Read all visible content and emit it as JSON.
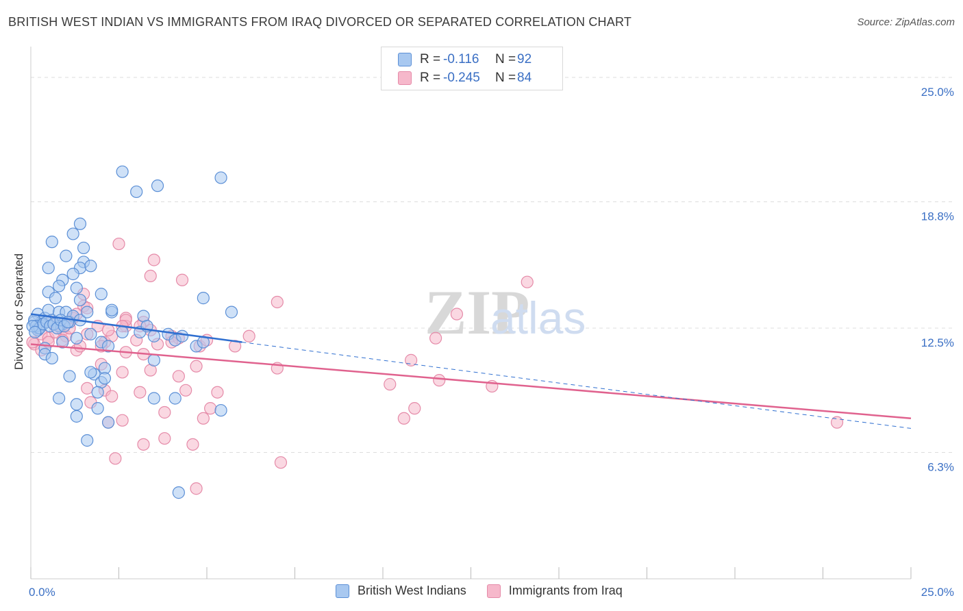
{
  "title": "BRITISH WEST INDIAN VS IMMIGRANTS FROM IRAQ DIVORCED OR SEPARATED CORRELATION CHART",
  "source": "Source: ZipAtlas.com",
  "watermark": {
    "zip": "ZIP",
    "atlas": "atlas"
  },
  "colors": {
    "blue_fill": "#a8c8f0",
    "blue_stroke": "#5b8fd6",
    "blue_line": "#2f6fd0",
    "pink_fill": "#f6b8cb",
    "pink_stroke": "#e58aa8",
    "pink_line": "#e0628e",
    "axis_text": "#3a6fc4",
    "grid": "#dddddd"
  },
  "legend_top": [
    {
      "r_label": "R =",
      "r_value": "-0.116",
      "n_label": "N =",
      "n_value": "92",
      "color": "blue"
    },
    {
      "r_label": "R =",
      "r_value": "-0.245",
      "n_label": "N =",
      "n_value": "84",
      "color": "pink"
    }
  ],
  "legend_bottom": [
    "British West Indians",
    "Immigrants from Iraq"
  ],
  "chart_data": {
    "type": "scatter",
    "title": "BRITISH WEST INDIAN VS IMMIGRANTS FROM IRAQ DIVORCED OR SEPARATED CORRELATION CHART",
    "xlabel": "",
    "ylabel": "Divorced or Separated",
    "xlim": [
      0,
      25
    ],
    "ylim": [
      0,
      26.3
    ],
    "x_tick_labels": [
      "0.0%",
      "25.0%"
    ],
    "y_ticks": [
      6.3,
      12.5,
      18.8,
      25.0
    ],
    "y_tick_labels": [
      "6.3%",
      "12.5%",
      "18.8%",
      "25.0%"
    ],
    "grid": "horizontal dashed",
    "legend": "bottom",
    "series": [
      {
        "name": "British West Indians",
        "color": "blue",
        "trend": {
          "x0": 0.0,
          "y0": 13.2,
          "x1": 6.0,
          "y1": 11.8,
          "dashed_to_x": 25.0,
          "dashed_to_y": 7.5
        },
        "points": [
          [
            2.6,
            20.3
          ],
          [
            3.0,
            19.3
          ],
          [
            5.4,
            20.0
          ],
          [
            3.6,
            19.6
          ],
          [
            1.4,
            17.7
          ],
          [
            1.2,
            17.2
          ],
          [
            0.6,
            16.8
          ],
          [
            1.0,
            16.1
          ],
          [
            1.5,
            16.5
          ],
          [
            0.5,
            15.5
          ],
          [
            1.5,
            15.8
          ],
          [
            1.4,
            15.5
          ],
          [
            1.7,
            15.6
          ],
          [
            1.2,
            15.2
          ],
          [
            0.9,
            14.9
          ],
          [
            0.8,
            14.6
          ],
          [
            1.3,
            14.5
          ],
          [
            0.5,
            14.3
          ],
          [
            0.7,
            14.0
          ],
          [
            2.0,
            14.2
          ],
          [
            1.4,
            13.9
          ],
          [
            4.9,
            14.0
          ],
          [
            0.2,
            13.2
          ],
          [
            0.3,
            12.8
          ],
          [
            0.4,
            13.0
          ],
          [
            0.1,
            12.8
          ],
          [
            0.2,
            12.5
          ],
          [
            0.3,
            12.6
          ],
          [
            0.5,
            13.4
          ],
          [
            0.6,
            12.9
          ],
          [
            0.8,
            13.3
          ],
          [
            0.9,
            12.7
          ],
          [
            1.0,
            13.3
          ],
          [
            1.1,
            12.8
          ],
          [
            1.2,
            13.1
          ],
          [
            1.4,
            12.9
          ],
          [
            1.6,
            13.3
          ],
          [
            1.7,
            12.2
          ],
          [
            2.3,
            13.3
          ],
          [
            2.3,
            13.4
          ],
          [
            2.6,
            12.3
          ],
          [
            3.1,
            12.3
          ],
          [
            3.2,
            13.1
          ],
          [
            3.3,
            12.6
          ],
          [
            3.5,
            12.1
          ],
          [
            3.9,
            12.2
          ],
          [
            4.1,
            11.9
          ],
          [
            4.3,
            12.1
          ],
          [
            4.7,
            11.6
          ],
          [
            4.9,
            11.8
          ],
          [
            5.7,
            13.3
          ],
          [
            0.2,
            12.4
          ],
          [
            0.3,
            12.7
          ],
          [
            0.1,
            12.9
          ],
          [
            0.4,
            11.5
          ],
          [
            0.4,
            11.2
          ],
          [
            0.6,
            11.0
          ],
          [
            0.8,
            12.6
          ],
          [
            0.9,
            11.8
          ],
          [
            1.3,
            12.0
          ],
          [
            2.0,
            11.8
          ],
          [
            2.2,
            11.6
          ],
          [
            2.1,
            10.5
          ],
          [
            1.8,
            10.2
          ],
          [
            1.7,
            10.3
          ],
          [
            2.0,
            9.8
          ],
          [
            2.1,
            10.0
          ],
          [
            1.9,
            9.3
          ],
          [
            1.1,
            10.1
          ],
          [
            3.5,
            10.9
          ],
          [
            0.8,
            9.0
          ],
          [
            1.3,
            8.7
          ],
          [
            1.9,
            8.5
          ],
          [
            3.5,
            9.0
          ],
          [
            4.1,
            9.0
          ],
          [
            5.4,
            8.4
          ],
          [
            1.3,
            8.1
          ],
          [
            2.2,
            7.8
          ],
          [
            1.6,
            6.9
          ],
          [
            4.2,
            4.3
          ],
          [
            0.15,
            12.6
          ],
          [
            0.25,
            12.5
          ],
          [
            0.35,
            12.7
          ],
          [
            0.45,
            12.8
          ],
          [
            0.55,
            12.6
          ],
          [
            0.65,
            12.7
          ],
          [
            0.75,
            12.5
          ],
          [
            0.85,
            12.9
          ],
          [
            0.95,
            12.6
          ],
          [
            1.05,
            12.8
          ],
          [
            0.05,
            12.6
          ],
          [
            0.12,
            12.3
          ]
        ]
      },
      {
        "name": "Immigrants from Iraq",
        "color": "pink",
        "trend": {
          "x0": 0.0,
          "y0": 11.7,
          "x1": 25.0,
          "y1": 8.0
        },
        "points": [
          [
            2.5,
            16.7
          ],
          [
            3.5,
            15.9
          ],
          [
            3.4,
            15.1
          ],
          [
            4.3,
            14.9
          ],
          [
            14.1,
            14.8
          ],
          [
            1.5,
            14.2
          ],
          [
            7.0,
            13.8
          ],
          [
            1.5,
            13.6
          ],
          [
            1.6,
            13.5
          ],
          [
            12.1,
            13.2
          ],
          [
            2.7,
            13.0
          ],
          [
            3.2,
            12.8
          ],
          [
            2.7,
            12.6
          ],
          [
            11.5,
            12.0
          ],
          [
            3.4,
            12.4
          ],
          [
            4.0,
            12.1
          ],
          [
            4.2,
            12.0
          ],
          [
            0.2,
            12.4
          ],
          [
            0.3,
            12.2
          ],
          [
            0.5,
            12.0
          ],
          [
            0.6,
            12.8
          ],
          [
            0.7,
            12.3
          ],
          [
            0.8,
            12.6
          ],
          [
            0.9,
            12.4
          ],
          [
            1.0,
            12.1
          ],
          [
            1.1,
            12.5
          ],
          [
            1.2,
            13.0
          ],
          [
            1.3,
            13.2
          ],
          [
            1.6,
            12.2
          ],
          [
            1.9,
            12.6
          ],
          [
            2.1,
            11.8
          ],
          [
            2.3,
            12.1
          ],
          [
            2.7,
            12.9
          ],
          [
            3.0,
            11.9
          ],
          [
            3.6,
            11.7
          ],
          [
            4.0,
            11.8
          ],
          [
            4.8,
            11.6
          ],
          [
            5.0,
            11.9
          ],
          [
            5.8,
            11.6
          ],
          [
            0.1,
            11.7
          ],
          [
            0.3,
            11.4
          ],
          [
            0.5,
            11.8
          ],
          [
            0.9,
            11.9
          ],
          [
            1.3,
            11.4
          ],
          [
            2.0,
            11.6
          ],
          [
            2.7,
            11.3
          ],
          [
            3.2,
            11.2
          ],
          [
            10.8,
            10.9
          ],
          [
            7.0,
            10.5
          ],
          [
            2.0,
            10.7
          ],
          [
            2.6,
            10.3
          ],
          [
            3.4,
            10.4
          ],
          [
            4.2,
            10.1
          ],
          [
            4.7,
            10.6
          ],
          [
            11.6,
            9.9
          ],
          [
            10.2,
            9.7
          ],
          [
            13.1,
            9.6
          ],
          [
            2.1,
            9.4
          ],
          [
            3.1,
            9.3
          ],
          [
            4.4,
            9.4
          ],
          [
            5.3,
            9.3
          ],
          [
            1.6,
            9.5
          ],
          [
            2.3,
            9.1
          ],
          [
            1.7,
            8.8
          ],
          [
            2.6,
            7.9
          ],
          [
            3.8,
            8.3
          ],
          [
            4.9,
            8.0
          ],
          [
            5.1,
            8.5
          ],
          [
            10.6,
            8.0
          ],
          [
            10.9,
            8.5
          ],
          [
            2.2,
            7.8
          ],
          [
            3.8,
            7.0
          ],
          [
            3.2,
            6.7
          ],
          [
            4.6,
            6.7
          ],
          [
            2.4,
            6.0
          ],
          [
            7.1,
            5.8
          ],
          [
            4.7,
            4.5
          ],
          [
            22.9,
            7.8
          ],
          [
            6.2,
            12.1
          ],
          [
            0.05,
            11.8
          ],
          [
            1.4,
            11.6
          ],
          [
            2.2,
            12.4
          ],
          [
            2.6,
            12.6
          ],
          [
            3.1,
            12.6
          ]
        ]
      }
    ]
  }
}
